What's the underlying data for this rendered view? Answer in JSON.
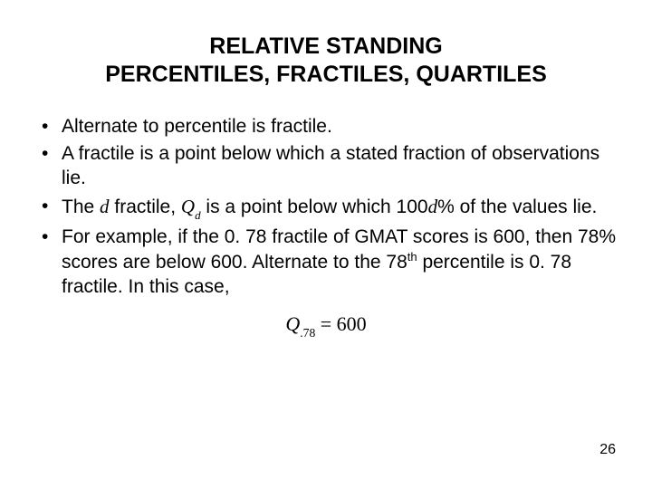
{
  "title_line1": "RELATIVE STANDING",
  "title_line2": "PERCENTILES, FRACTILES, QUARTILES",
  "bullets": {
    "b1": "Alternate to percentile is fractile.",
    "b2": "A fractile is a point below which a stated fraction of observations lie.",
    "b3_pre": "The ",
    "b3_dvar": "d",
    "b3_mid": " fractile, ",
    "b3_Q": "Q",
    "b3_Qsub": "d",
    "b3_post1": "  is a point below which 100",
    "b3_post_d": "d",
    "b3_post2": "% of the values lie.",
    "b4_pre": "For example, if the 0. 78 fractile of GMAT scores is 600, then 78% scores are below 600. Alternate to the 78",
    "b4_th": "th",
    "b4_post": " percentile is 0. 78 fractile. In this case,"
  },
  "equation": {
    "Q": "Q",
    "sub": ".78",
    "eq": " = ",
    "rhs": "600"
  },
  "page_number": "26",
  "colors": {
    "bg": "#ffffff",
    "text": "#000000"
  },
  "fontsizes": {
    "title": 25,
    "body": 21,
    "equation": 22,
    "pagenum": 16
  }
}
